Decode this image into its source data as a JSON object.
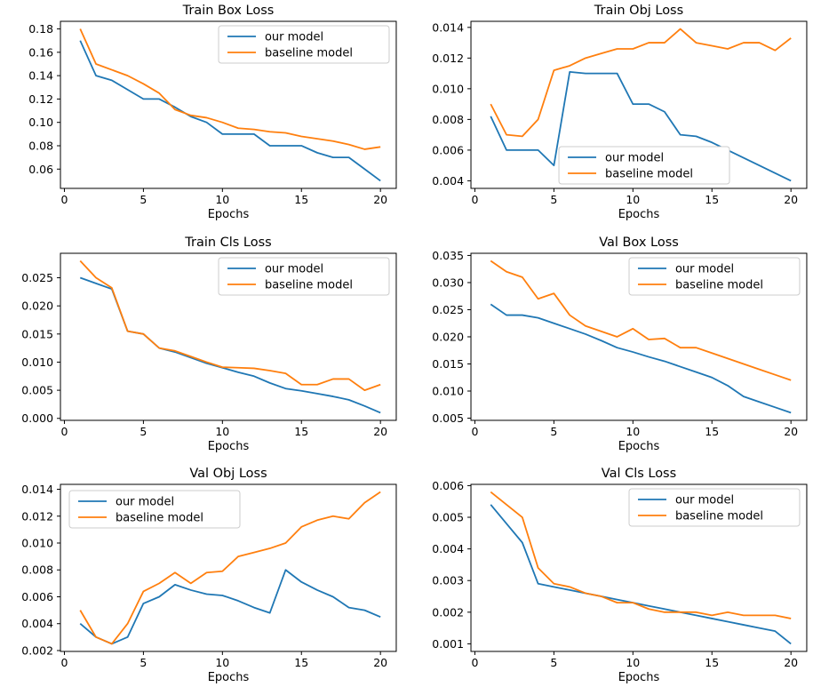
{
  "figure": {
    "background": "#ffffff",
    "text_color": "#000000",
    "axis_color": "#000000",
    "series_colors": {
      "our_model": "#1f77b4",
      "baseline_model": "#ff7f0e"
    }
  },
  "epochs": [
    1,
    2,
    3,
    4,
    5,
    6,
    7,
    8,
    9,
    10,
    11,
    12,
    13,
    14,
    15,
    16,
    17,
    18,
    19,
    20
  ],
  "chart_data": [
    {
      "type": "line",
      "title": "Train Box Loss",
      "xlabel": "Epochs",
      "xlim": [
        -0.25,
        21
      ],
      "ylim": [
        0.0435,
        0.1865
      ],
      "xticks": [
        "0",
        "5",
        "10",
        "15",
        "20"
      ],
      "yticks": [
        "0.06",
        "0.08",
        "0.10",
        "0.12",
        "0.14",
        "0.16",
        "0.18"
      ],
      "grid": false,
      "legend_position": "top-right",
      "series": [
        {
          "name": "our model",
          "color": "#1f77b4",
          "values": [
            0.17,
            0.14,
            0.136,
            0.128,
            0.12,
            0.12,
            0.113,
            0.105,
            0.1,
            0.09,
            0.09,
            0.09,
            0.08,
            0.08,
            0.08,
            0.074,
            0.07,
            0.07,
            0.06,
            0.05
          ]
        },
        {
          "name": "baseline model",
          "color": "#ff7f0e",
          "values": [
            0.18,
            0.15,
            0.145,
            0.14,
            0.133,
            0.125,
            0.111,
            0.106,
            0.104,
            0.1,
            0.095,
            0.094,
            0.092,
            0.091,
            0.088,
            0.086,
            0.084,
            0.081,
            0.077,
            0.079
          ]
        }
      ]
    },
    {
      "type": "line",
      "title": "Train Obj Loss",
      "xlabel": "Epochs",
      "xlim": [
        -0.25,
        21
      ],
      "ylim": [
        0.003505,
        0.014395
      ],
      "xticks": [
        "0",
        "5",
        "10",
        "15",
        "20"
      ],
      "yticks": [
        "0.004",
        "0.006",
        "0.008",
        "0.010",
        "0.012",
        "0.014"
      ],
      "grid": false,
      "legend_position": "bottom-center",
      "series": [
        {
          "name": "our model",
          "color": "#1f77b4",
          "values": [
            0.0082,
            0.006,
            0.006,
            0.006,
            0.005,
            0.0111,
            0.011,
            0.011,
            0.011,
            0.009,
            0.009,
            0.0085,
            0.007,
            0.0069,
            0.0065,
            0.006,
            0.0055,
            0.005,
            0.0045,
            0.004
          ]
        },
        {
          "name": "baseline model",
          "color": "#ff7f0e",
          "values": [
            0.009,
            0.007,
            0.0069,
            0.008,
            0.0112,
            0.0115,
            0.012,
            0.0123,
            0.0126,
            0.0126,
            0.013,
            0.013,
            0.0139,
            0.013,
            0.0128,
            0.0126,
            0.013,
            0.013,
            0.0125,
            0.0133
          ]
        }
      ]
    },
    {
      "type": "line",
      "title": "Train Cls Loss",
      "xlabel": "Epochs",
      "xlim": [
        -0.25,
        21
      ],
      "ylim": [
        -0.00035,
        0.02935
      ],
      "xticks": [
        "0",
        "5",
        "10",
        "15",
        "20"
      ],
      "yticks": [
        "0.000",
        "0.005",
        "0.010",
        "0.015",
        "0.020",
        "0.025"
      ],
      "grid": false,
      "legend_position": "top-right",
      "series": [
        {
          "name": "our model",
          "color": "#1f77b4",
          "values": [
            0.025,
            0.024,
            0.023,
            0.0155,
            0.015,
            0.0125,
            0.0118,
            0.0108,
            0.0098,
            0.009,
            0.0082,
            0.0075,
            0.0063,
            0.0053,
            0.0049,
            0.0044,
            0.0039,
            0.0033,
            0.0022,
            0.001
          ]
        },
        {
          "name": "baseline model",
          "color": "#ff7f0e",
          "values": [
            0.028,
            0.025,
            0.0232,
            0.0155,
            0.015,
            0.0125,
            0.012,
            0.011,
            0.01,
            0.0091,
            0.009,
            0.0089,
            0.0085,
            0.008,
            0.006,
            0.006,
            0.007,
            0.007,
            0.005,
            0.006
          ]
        }
      ]
    },
    {
      "type": "line",
      "title": "Val Box Loss",
      "xlabel": "Epochs",
      "xlim": [
        -0.25,
        21
      ],
      "ylim": [
        0.0046,
        0.0354
      ],
      "xticks": [
        "0",
        "5",
        "10",
        "15",
        "20"
      ],
      "yticks": [
        "0.005",
        "0.010",
        "0.015",
        "0.020",
        "0.025",
        "0.030",
        "0.035"
      ],
      "grid": false,
      "legend_position": "top-right",
      "series": [
        {
          "name": "our model",
          "color": "#1f77b4",
          "values": [
            0.026,
            0.024,
            0.024,
            0.0235,
            0.0225,
            0.0215,
            0.0205,
            0.0193,
            0.018,
            0.0172,
            0.0163,
            0.0155,
            0.0145,
            0.0135,
            0.0125,
            0.011,
            0.009,
            0.008,
            0.007,
            0.006
          ]
        },
        {
          "name": "baseline model",
          "color": "#ff7f0e",
          "values": [
            0.034,
            0.032,
            0.031,
            0.027,
            0.028,
            0.024,
            0.022,
            0.021,
            0.02,
            0.0215,
            0.0195,
            0.0197,
            0.018,
            0.018,
            0.017,
            0.016,
            0.015,
            0.014,
            0.013,
            0.012
          ]
        }
      ]
    },
    {
      "type": "line",
      "title": "Val Obj Loss",
      "xlabel": "Epochs",
      "xlim": [
        -0.25,
        21
      ],
      "ylim": [
        0.001935,
        0.014365
      ],
      "xticks": [
        "0",
        "5",
        "10",
        "15",
        "20"
      ],
      "yticks": [
        "0.002",
        "0.004",
        "0.006",
        "0.008",
        "0.010",
        "0.012",
        "0.014"
      ],
      "grid": false,
      "legend_position": "top-left",
      "series": [
        {
          "name": "our model",
          "color": "#1f77b4",
          "values": [
            0.004,
            0.003,
            0.0025,
            0.003,
            0.0055,
            0.006,
            0.0069,
            0.0065,
            0.0062,
            0.0061,
            0.0057,
            0.0052,
            0.0048,
            0.008,
            0.0071,
            0.0065,
            0.006,
            0.0052,
            0.005,
            0.0045
          ]
        },
        {
          "name": "baseline model",
          "color": "#ff7f0e",
          "values": [
            0.005,
            0.003,
            0.0025,
            0.004,
            0.0064,
            0.007,
            0.0078,
            0.007,
            0.0078,
            0.0079,
            0.009,
            0.0093,
            0.0096,
            0.01,
            0.0112,
            0.0117,
            0.012,
            0.0118,
            0.013,
            0.0138
          ]
        }
      ]
    },
    {
      "type": "line",
      "title": "Val Cls Loss",
      "xlabel": "Epochs",
      "xlim": [
        -0.25,
        21
      ],
      "ylim": [
        0.00076,
        0.00604
      ],
      "xticks": [
        "0",
        "5",
        "10",
        "15",
        "20"
      ],
      "yticks": [
        "0.001",
        "0.002",
        "0.003",
        "0.004",
        "0.005",
        "0.006"
      ],
      "grid": false,
      "legend_position": "top-right",
      "series": [
        {
          "name": "our model",
          "color": "#1f77b4",
          "values": [
            0.0054,
            0.0048,
            0.0042,
            0.0029,
            0.0028,
            0.0027,
            0.0026,
            0.0025,
            0.0024,
            0.0023,
            0.0022,
            0.0021,
            0.002,
            0.0019,
            0.0018,
            0.0017,
            0.0016,
            0.0015,
            0.0014,
            0.001
          ]
        },
        {
          "name": "baseline model",
          "color": "#ff7f0e",
          "values": [
            0.0058,
            0.0054,
            0.005,
            0.0034,
            0.0029,
            0.0028,
            0.0026,
            0.0025,
            0.0023,
            0.0023,
            0.0021,
            0.002,
            0.002,
            0.002,
            0.0019,
            0.002,
            0.0019,
            0.0019,
            0.0019,
            0.0018
          ]
        }
      ]
    }
  ]
}
